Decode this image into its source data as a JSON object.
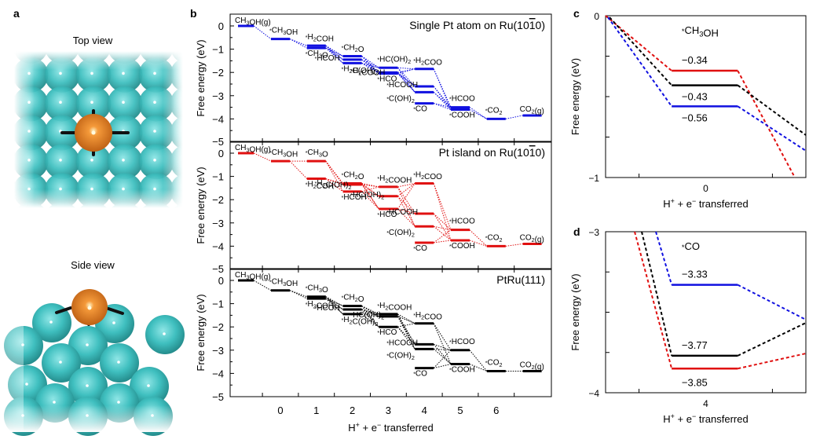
{
  "figure": {
    "panel_a": {
      "letter": "a",
      "top_view_title": "Top view",
      "side_view_title": "Side view",
      "colors": {
        "ru_atom": "#3fbfbf",
        "pt_atom": "#e07a20",
        "bond": "#111111"
      }
    },
    "panel_b": {
      "letter": "b"
    },
    "panel_c": {
      "letter": "c"
    },
    "panel_d": {
      "letter": "d"
    }
  },
  "chart_data": [
    {
      "id": "b1",
      "type": "line",
      "subtype": "free-energy-diagram",
      "title": "Single Pt atom on Ru(10̅1̅0)",
      "title_text": "Single Pt atom on Ru(10",
      "title_bar": "1",
      "title_end": "0)",
      "color": "#1010e0",
      "ylabel": "Free energy (eV)",
      "ylim": [
        -5,
        0.4
      ],
      "yticks": [
        0,
        -1,
        -2,
        -3,
        -4,
        -5
      ],
      "levels": [
        {
          "x": -1,
          "y": 0.0,
          "label": "CH3OH(g)"
        },
        {
          "x": 0,
          "y": -0.56,
          "label": "*CH3OH"
        },
        {
          "x": 1,
          "y": -0.85,
          "label": "*H2COH"
        },
        {
          "x": 1,
          "y": -0.95,
          "label": "*CH3O"
        },
        {
          "x": 2,
          "y": -1.3,
          "label": "*CH2O"
        },
        {
          "x": 2,
          "y": -1.45,
          "label": "*HCOH"
        },
        {
          "x": 2,
          "y": -1.6,
          "label": "*H2C(OH)2"
        },
        {
          "x": 3,
          "y": -1.8,
          "label": "*HC(OH)2"
        },
        {
          "x": 3,
          "y": -2.0,
          "label": "*H2COOH"
        },
        {
          "x": 3,
          "y": -2.05,
          "label": "*HCO"
        },
        {
          "x": 4,
          "y": -1.85,
          "label": "*H2COO"
        },
        {
          "x": 4,
          "y": -2.6,
          "label": "*HCOOH"
        },
        {
          "x": 4,
          "y": -2.85,
          "label": "*C(OH)2"
        },
        {
          "x": 4,
          "y": -3.33,
          "label": "*CO"
        },
        {
          "x": 5,
          "y": -3.5,
          "label": "*HCOO"
        },
        {
          "x": 5,
          "y": -3.6,
          "label": "*COOH"
        },
        {
          "x": 6,
          "y": -4.0,
          "label": "*CO2"
        },
        {
          "x": 7,
          "y": -3.85,
          "label": "CO2(g)"
        }
      ]
    },
    {
      "id": "b2",
      "type": "line",
      "subtype": "free-energy-diagram",
      "title_text": "Pt island on Ru(10",
      "title_bar": "1",
      "title_end": "0)",
      "color": "#e01010",
      "ylabel": "Free energy (eV)",
      "ylim": [
        -5,
        0.4
      ],
      "yticks": [
        0,
        -1,
        -2,
        -3,
        -4,
        -5
      ],
      "levels": [
        {
          "x": -1,
          "y": 0.0,
          "label": "CH3OH(g)"
        },
        {
          "x": 0,
          "y": -0.34,
          "label": "*CH3OH"
        },
        {
          "x": 1,
          "y": -0.34,
          "label": "*CH3O"
        },
        {
          "x": 1,
          "y": -1.1,
          "label": "*H2COH"
        },
        {
          "x": 2,
          "y": -1.35,
          "label": "*H2C(OH)2"
        },
        {
          "x": 2,
          "y": -1.3,
          "label": "*CH2O"
        },
        {
          "x": 2,
          "y": -1.65,
          "label": "*HCOH"
        },
        {
          "x": 3,
          "y": -1.45,
          "label": "*H2COOH"
        },
        {
          "x": 3,
          "y": -1.85,
          "label": "*HC(OH)2"
        },
        {
          "x": 3,
          "y": -2.4,
          "label": "*HCO"
        },
        {
          "x": 4,
          "y": -1.3,
          "label": "*H2COO"
        },
        {
          "x": 4,
          "y": -2.6,
          "label": "*HCOOH"
        },
        {
          "x": 4,
          "y": -3.15,
          "label": "*C(OH)2"
        },
        {
          "x": 4,
          "y": -3.85,
          "label": "*CO"
        },
        {
          "x": 5,
          "y": -3.3,
          "label": "*HCOO"
        },
        {
          "x": 5,
          "y": -3.75,
          "label": "*COOH"
        },
        {
          "x": 6,
          "y": -4.0,
          "label": "*CO2"
        },
        {
          "x": 7,
          "y": -3.9,
          "label": "CO2(g)"
        }
      ]
    },
    {
      "id": "b3",
      "type": "line",
      "subtype": "free-energy-diagram",
      "title_text": "PtRu(111)",
      "title_bar": "",
      "title_end": "",
      "color": "#000000",
      "ylabel": "Free energy (eV)",
      "xlabel": "H+ + e− transferred",
      "xticks": [
        0,
        1,
        2,
        3,
        4,
        5,
        6
      ],
      "ylim": [
        -5,
        0.4
      ],
      "yticks": [
        0,
        -1,
        -2,
        -3,
        -4,
        -5
      ],
      "levels": [
        {
          "x": -1,
          "y": 0.0,
          "label": "CH3OH(g)"
        },
        {
          "x": 0,
          "y": -0.43,
          "label": "*CH3OH"
        },
        {
          "x": 1,
          "y": -0.7,
          "label": "*CH3O"
        },
        {
          "x": 1,
          "y": -0.78,
          "label": "*H2COH"
        },
        {
          "x": 2,
          "y": -1.1,
          "label": "*CH2O"
        },
        {
          "x": 2,
          "y": -1.25,
          "label": "*HCOH"
        },
        {
          "x": 2,
          "y": -1.45,
          "label": "*H2C(OH)2"
        },
        {
          "x": 3,
          "y": -1.45,
          "label": "*H2COOH"
        },
        {
          "x": 3,
          "y": -1.55,
          "label": "*HC(OH)2"
        },
        {
          "x": 3,
          "y": -2.0,
          "label": "*HCO"
        },
        {
          "x": 4,
          "y": -1.85,
          "label": "*H2COO"
        },
        {
          "x": 4,
          "y": -2.75,
          "label": "*HCOOH"
        },
        {
          "x": 4,
          "y": -2.95,
          "label": "*C(OH)2"
        },
        {
          "x": 4,
          "y": -3.77,
          "label": "*CO"
        },
        {
          "x": 5,
          "y": -3.0,
          "label": "*HCOO"
        },
        {
          "x": 5,
          "y": -3.6,
          "label": "*COOH"
        },
        {
          "x": 6,
          "y": -3.9,
          "label": "*CO2"
        },
        {
          "x": 7,
          "y": -3.9,
          "label": "CO2(g)"
        }
      ]
    },
    {
      "id": "c",
      "type": "line",
      "title": "*CH3OH",
      "ylabel": "Free energy (eV)",
      "xlabel": "H+ + e− transferred",
      "xticks": [
        "0"
      ],
      "ylim": [
        -1,
        0
      ],
      "yticks": [
        "0",
        "−1"
      ],
      "series": [
        {
          "name": "Pt island on Ru(1010)",
          "color": "#e01010",
          "value": -0.34,
          "label": "−0.34"
        },
        {
          "name": "PtRu(111)",
          "color": "#000000",
          "value": -0.43,
          "label": "−0.43"
        },
        {
          "name": "Single Pt atom on Ru(1010)",
          "color": "#1010e0",
          "value": -0.56,
          "label": "−0.56"
        }
      ]
    },
    {
      "id": "d",
      "type": "line",
      "title": "*CO",
      "ylabel": "Free energy (eV)",
      "xlabel": "H+ + e− transferred",
      "xticks": [
        "4"
      ],
      "ylim": [
        -4,
        -3
      ],
      "yticks": [
        "−3",
        "−4"
      ],
      "series": [
        {
          "name": "Single Pt atom on Ru(1010)",
          "color": "#1010e0",
          "value": -3.33,
          "label": "−3.33"
        },
        {
          "name": "PtRu(111)",
          "color": "#000000",
          "value": -3.77,
          "label": "−3.77"
        },
        {
          "name": "Pt island on Ru(1010)",
          "color": "#e01010",
          "value": -3.85,
          "label": "−3.85"
        }
      ]
    }
  ]
}
